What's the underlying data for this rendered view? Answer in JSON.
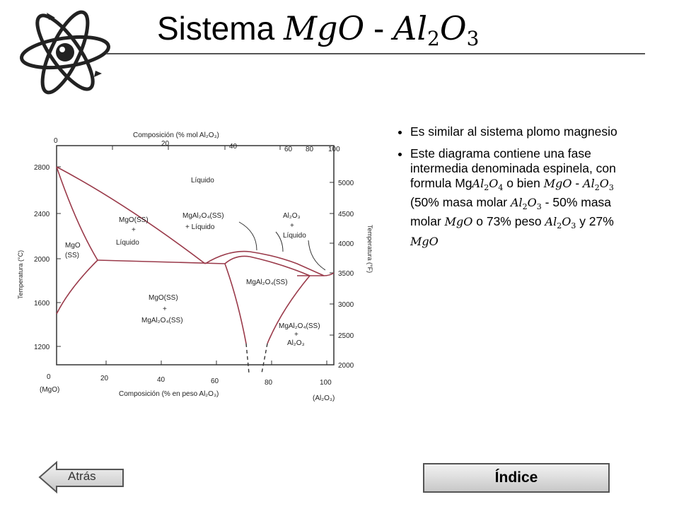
{
  "title": {
    "text": "Sistema",
    "formula_1": {
      "base": "MgO",
      "sub": ""
    },
    "separator": "-",
    "formula_2": {
      "base_1": "Al",
      "sub_1": "2",
      "base_2": "O",
      "sub_2": "3"
    }
  },
  "bullets": [
    {
      "text": "Es similar al sistema plomo magnesio"
    },
    {
      "t1": "Este diagrama contiene una fase intermedia denominada espinela, con formula ",
      "f1a": "Mg",
      "f1b": "Al",
      "f1s1": "2",
      "f1c": "O",
      "f1s2": "4",
      "t2": " o bien ",
      "f2": "MgO",
      "t3": " - ",
      "f3a": "Al",
      "f3s1": "2",
      "f3b": "O",
      "f3s2": "3",
      "t4": " (50% masa molar ",
      "f4a": "Al",
      "f4s1": "2",
      "f4b": "O",
      "f4s2": "3",
      "t5": " - 50% masa molar ",
      "f5": "MgO",
      "t6": " o 73% peso ",
      "f6a": "Al",
      "f6s1": "2",
      "f6b": "O",
      "f6s2": "3",
      "t7": " y 27% ",
      "f7": "MgO"
    }
  ],
  "diagram": {
    "top_axis_label": "Composición (% mol Al₂O₃)",
    "top_ticks": [
      "0",
      "20",
      "40",
      "60",
      "80",
      "100"
    ],
    "bottom_axis_label": "Composición (% en peso Al₂O₃)",
    "bottom_ticks": [
      "0",
      "20",
      "40",
      "60",
      "80",
      "100"
    ],
    "left_end_label": "(MgO)",
    "right_end_label": "(Al₂O₃)",
    "left_axis_label": "Temperatura (°C)",
    "left_ticks": [
      "2800",
      "2400",
      "2000",
      "1600",
      "1200"
    ],
    "right_axis_label": "Temperatura (°F)",
    "right_ticks": [
      "5000",
      "4500",
      "4000",
      "3500",
      "3000",
      "2500",
      "2000"
    ],
    "regions": {
      "liquid": "Líquido",
      "mgo_ss_liquid_1": "MgO(SS)",
      "mgo_ss_liquid_2": "+",
      "mgo_ss_liquid_3": "Líquido",
      "mgo_ss_1": "MgO",
      "mgo_ss_2": "(SS)",
      "spinel_liquid_1": "MgAl₂O₄(SS)",
      "spinel_liquid_2": "+ Líquido",
      "al2o3_liquid_1": "Al₂O₃",
      "al2o3_liquid_2": "+",
      "al2o3_liquid_3": "Líquido",
      "spinel_ss": "MgAl₂O₄(SS)",
      "mgo_spinel_1": "MgO(SS)",
      "mgo_spinel_2": "+",
      "mgo_spinel_3": "MgAl₂O₄(SS)",
      "spinel_al2o3_1": "MgAl₂O₄(SS)",
      "spinel_al2o3_2": "+",
      "spinel_al2o3_3": "Al₂O₃"
    }
  },
  "nav": {
    "back_label": "Atrás",
    "index_label": "Índice"
  },
  "colors": {
    "phase_lines": "#9a3a4a",
    "frame": "#333333"
  },
  "icons": {
    "logo": "atom-icon",
    "back": "left-arrow-icon"
  }
}
